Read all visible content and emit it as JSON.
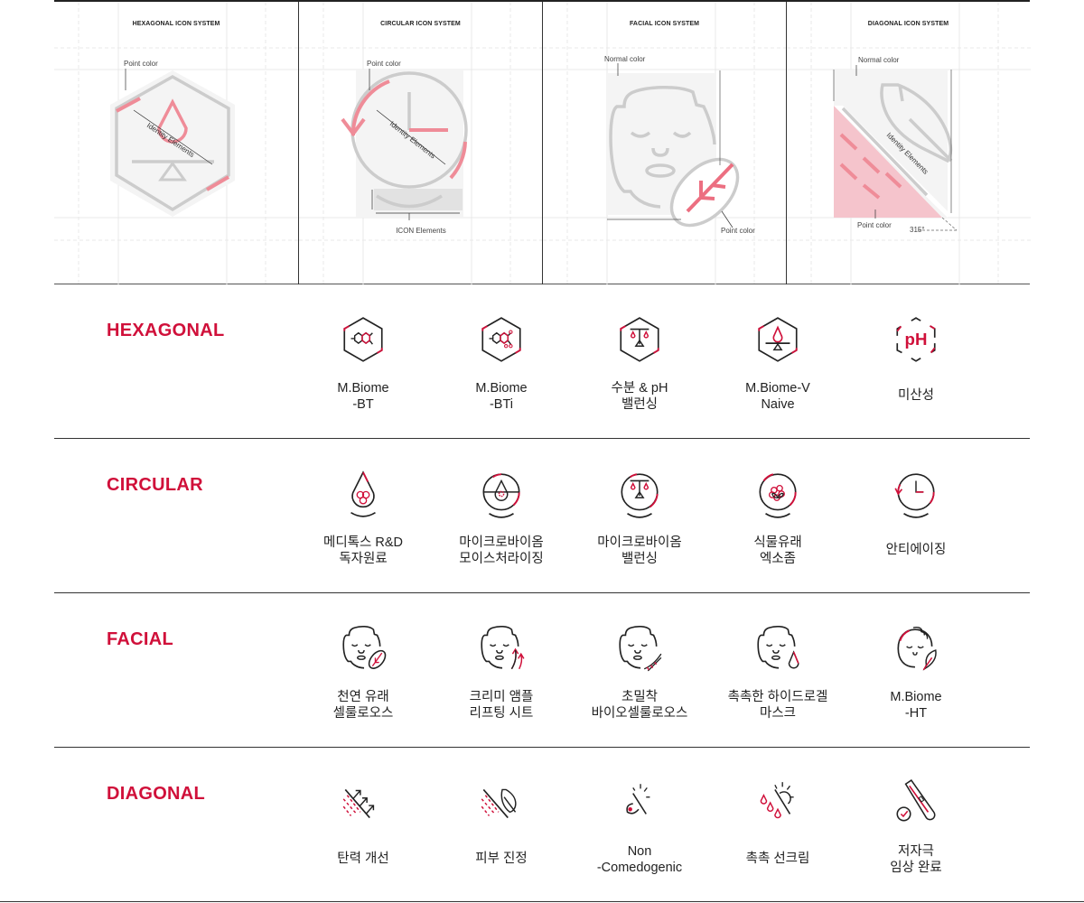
{
  "accent_color": "#d0103a",
  "panels": [
    {
      "title": "HEXAGONAL ICON SYSTEM",
      "notes": {
        "point": "Point color",
        "identity": "Identity Elements"
      }
    },
    {
      "title": "CIRCULAR ICON SYSTEM",
      "notes": {
        "point": "Point color",
        "identity": "Identity Elements",
        "icon": "ICON Elements"
      }
    },
    {
      "title": "FACIAL ICON SYSTEM",
      "notes": {
        "normal": "Normal color",
        "point": "Point color"
      }
    },
    {
      "title": "DIAGONAL ICON SYSTEM",
      "notes": {
        "normal": "Normal color",
        "identity": "Identity Elements",
        "point": "Point color",
        "angle": "315°"
      }
    }
  ],
  "sections": [
    {
      "title": "HEXAGONAL",
      "items": [
        {
          "icon": "hex-molecule",
          "lines": [
            "M.Biome",
            "-BT"
          ]
        },
        {
          "icon": "hex-molecule-i",
          "lines": [
            "M.Biome",
            "-BTi"
          ]
        },
        {
          "icon": "hex-scale",
          "lines": [
            "수분 & pH",
            "밸런싱"
          ]
        },
        {
          "icon": "hex-drop-balance",
          "lines": [
            "M.Biome-V",
            "Naive"
          ]
        },
        {
          "icon": "hex-ph",
          "lines": [
            "미산성"
          ]
        }
      ]
    },
    {
      "title": "CIRCULAR",
      "items": [
        {
          "icon": "circ-drop-hex",
          "lines": [
            "메디톡스 R&D",
            "독자원료"
          ]
        },
        {
          "icon": "circ-drop-gear",
          "lines": [
            "마이크로바이옴",
            "모이스처라이징"
          ]
        },
        {
          "icon": "circ-scale",
          "lines": [
            "마이크로바이옴",
            "밸런싱"
          ]
        },
        {
          "icon": "circ-flower",
          "lines": [
            "식물유래",
            "엑소좀"
          ]
        },
        {
          "icon": "circ-clock",
          "lines": [
            "안티에이징"
          ]
        }
      ]
    },
    {
      "title": "FACIAL",
      "items": [
        {
          "icon": "face-leaf",
          "lines": [
            "천연 유래",
            "셀룰로오스"
          ]
        },
        {
          "icon": "face-arrows",
          "lines": [
            "크리미 앰플",
            "리프팅 시트"
          ]
        },
        {
          "icon": "face-dna",
          "lines": [
            "초밀착",
            "바이오셀룰로오스"
          ]
        },
        {
          "icon": "face-drop",
          "lines": [
            "촉촉한 하이드로겔",
            "마스크"
          ]
        },
        {
          "icon": "face-hair-leaf",
          "lines": [
            "M.Biome",
            "-HT"
          ]
        }
      ]
    },
    {
      "title": "DIAGONAL",
      "items": [
        {
          "icon": "diag-arrows",
          "lines": [
            "탄력 개선"
          ]
        },
        {
          "icon": "diag-leaf",
          "lines": [
            "피부 진정"
          ]
        },
        {
          "icon": "diag-pore",
          "lines": [
            "Non",
            "-Comedogenic"
          ]
        },
        {
          "icon": "diag-sun-drops",
          "lines": [
            "촉촉 선크림"
          ]
        },
        {
          "icon": "diag-test-tube",
          "lines": [
            "저자극",
            "임상 완료"
          ]
        }
      ]
    }
  ]
}
